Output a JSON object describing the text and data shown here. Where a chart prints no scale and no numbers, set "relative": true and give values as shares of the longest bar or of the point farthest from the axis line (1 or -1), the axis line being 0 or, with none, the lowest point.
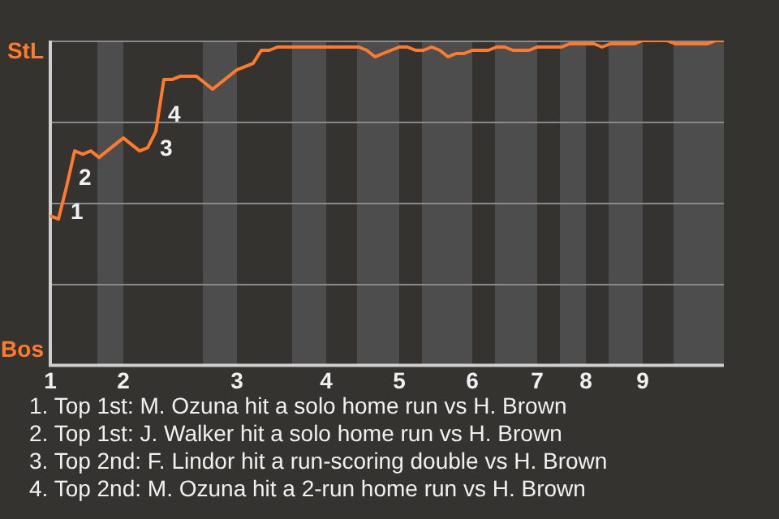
{
  "chart_data": {
    "type": "line",
    "relative": true,
    "categories": [
      "1",
      null,
      null,
      null,
      null,
      null,
      null,
      null,
      null,
      "2",
      null,
      null,
      null,
      null,
      null,
      null,
      null,
      null,
      null,
      null,
      null,
      null,
      null,
      "3",
      null,
      null,
      null,
      null,
      null,
      null,
      null,
      null,
      null,
      null,
      "4",
      null,
      null,
      null,
      null,
      null,
      null,
      null,
      null,
      "5",
      null,
      null,
      null,
      null,
      null,
      null,
      null,
      null,
      "6",
      null,
      null,
      null,
      null,
      null,
      null,
      null,
      "7",
      null,
      null,
      null,
      null,
      null,
      "8",
      null,
      null,
      null,
      null,
      null,
      null,
      "9",
      null,
      null,
      null,
      null,
      null,
      null,
      null,
      null,
      null,
      null
    ],
    "series": [
      {
        "color": "#ff7a2a",
        "values": [
          0.46,
          0.45,
          0.55,
          0.66,
          0.65,
          0.66,
          0.64,
          0.66,
          0.68,
          0.7,
          0.68,
          0.66,
          0.67,
          0.72,
          0.88,
          0.88,
          0.89,
          0.89,
          0.89,
          0.87,
          0.85,
          0.87,
          0.89,
          0.91,
          0.92,
          0.93,
          0.97,
          0.97,
          0.98,
          0.98,
          0.98,
          0.98,
          0.98,
          0.98,
          0.98,
          0.98,
          0.98,
          0.98,
          0.98,
          0.97,
          0.95,
          0.96,
          0.97,
          0.98,
          0.98,
          0.97,
          0.97,
          0.98,
          0.97,
          0.95,
          0.96,
          0.96,
          0.97,
          0.97,
          0.97,
          0.98,
          0.98,
          0.97,
          0.97,
          0.97,
          0.98,
          0.98,
          0.98,
          0.98,
          0.99,
          0.99,
          0.99,
          0.99,
          0.98,
          0.99,
          0.99,
          0.99,
          0.99,
          1,
          1,
          1,
          1,
          0.99,
          0.99,
          0.99,
          0.99,
          0.99,
          1,
          1
        ],
        "name": null
      }
    ],
    "grid": "y",
    "legend": false,
    "marker": "none",
    "line_style": "solid",
    "annotations": [
      "StL",
      "Bos",
      "1",
      "2",
      "3",
      "4",
      "1. Top 1st: M. Ozuna hit a solo home run vs H. Brown",
      "2. Top 1st: J. Walker hit a solo home run vs H. Brown",
      "3. Top 2nd: F. Lindor hit a run-scoring double vs H. Brown",
      "4. Top 2nd: M. Ozuna hit a 2-run home run vs H. Brown"
    ]
  }
}
